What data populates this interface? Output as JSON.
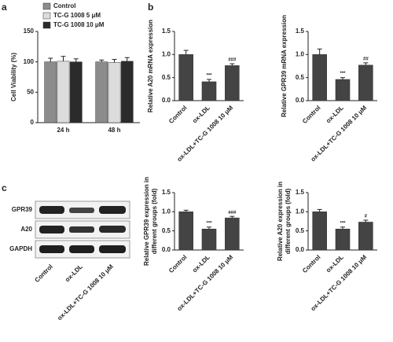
{
  "panel_labels": [
    "a",
    "b",
    "c"
  ],
  "chart_data": [
    {
      "type": "bar",
      "ylabel": "Cell Viability (%)",
      "categories": [
        "24 h",
        "48 h"
      ],
      "series": [
        {
          "name": "Control",
          "color": "#8c8c8c",
          "values": [
            100,
            100
          ],
          "errors": [
            6,
            3
          ]
        },
        {
          "name": "TC-G 1008 5 μM",
          "color": "#dcdcdc",
          "values": [
            101,
            99
          ],
          "errors": [
            8,
            5
          ]
        },
        {
          "name": "TC-G 1008 10 μM",
          "color": "#2b2b2b",
          "values": [
            100,
            101
          ],
          "errors": [
            5,
            6
          ]
        }
      ],
      "ylim": [
        0,
        150
      ],
      "yticks": [
        0,
        50,
        100,
        150
      ]
    },
    {
      "type": "bar",
      "ylabel": [
        "Relative A20 mRNA expression"
      ],
      "categories": [
        "Control",
        "ox-LDL",
        "ox-LDL+TC-G 1008 10 μM"
      ],
      "color": "#444444",
      "values": [
        1.0,
        0.41,
        0.76
      ],
      "errors": [
        0.09,
        0.05,
        0.04
      ],
      "annotations": [
        null,
        "***",
        "###"
      ],
      "ylim": [
        0,
        1.5
      ],
      "yticks": [
        {
          "value": 0,
          "label": "0.0"
        },
        0.5,
        {
          "value": 1,
          "label": "1.0"
        },
        1.5
      ]
    },
    {
      "type": "bar",
      "ylabel": [
        "Relative GPR39 mRNA expression"
      ],
      "categories": [
        "Control",
        "ox-LDL",
        "ox-LDL+TC-G 1008 10 μM"
      ],
      "color": "#444444",
      "values": [
        1.0,
        0.46,
        0.77
      ],
      "errors": [
        0.12,
        0.04,
        0.05
      ],
      "annotations": [
        null,
        "***",
        "##"
      ],
      "ylim": [
        0,
        1.5
      ],
      "yticks": [
        {
          "value": 0,
          "label": "0.0"
        },
        0.5,
        {
          "value": 1,
          "label": "1.0"
        },
        1.5
      ]
    },
    {
      "type": "bar",
      "ylabel": [
        "Relative GPR39 expression in",
        "different groups (fold)"
      ],
      "categories": [
        "Control",
        "ox-LDL",
        "ox-LDL+TC-G 1008 10 μM"
      ],
      "color": "#444444",
      "values": [
        1.0,
        0.55,
        0.84
      ],
      "errors": [
        0.04,
        0.05,
        0.04
      ],
      "annotations": [
        null,
        "***",
        "###"
      ],
      "ylim": [
        0,
        1.5
      ],
      "yticks": [
        {
          "value": 0,
          "label": "0.0"
        },
        0.5,
        {
          "value": 1,
          "label": "1.0"
        },
        1.5
      ]
    },
    {
      "type": "bar",
      "ylabel": [
        "Relative A20 expression in",
        "different groups (fold)"
      ],
      "categories": [
        "Control",
        "ox-LDL",
        "ox-LDL+TC-G 1008 10 μM"
      ],
      "color": "#444444",
      "values": [
        1.0,
        0.55,
        0.73
      ],
      "errors": [
        0.06,
        0.05,
        0.05
      ],
      "annotations": [
        null,
        "***",
        "#"
      ],
      "ylim": [
        0,
        1.5
      ],
      "yticks": [
        {
          "value": 0,
          "label": "0.0"
        },
        0.5,
        {
          "value": 1,
          "label": "1.0"
        },
        1.5
      ]
    }
  ],
  "blot": {
    "rows": [
      "GPR39",
      "A20",
      "GAPDH"
    ],
    "lanes": [
      "Control",
      "ox-LDL",
      "ox-LDL+TC-G 1008 10 μM"
    ]
  }
}
